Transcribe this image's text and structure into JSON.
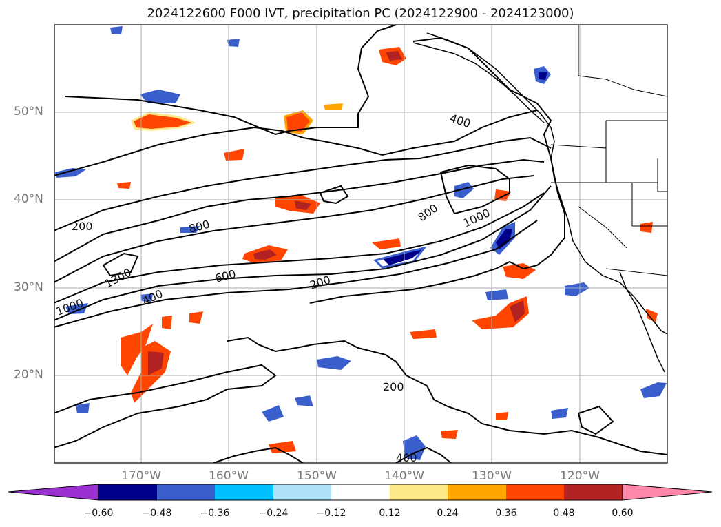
{
  "title": "2024122600 F000 IVT, precipitation PC (2024122900 - 2024123000)",
  "lat_labels": [
    "50°N",
    "40°N",
    "30°N",
    "20°N"
  ],
  "lon_labels": [
    "170°W",
    "160°W",
    "150°W",
    "140°W",
    "130°W",
    "120°W"
  ],
  "ivt_contour_labels": [
    "200",
    "200",
    "200",
    "400",
    "400",
    "400",
    "600",
    "800",
    "800",
    "1000",
    "1000",
    "1300"
  ],
  "colorbar": {
    "ticks": [
      "−0.60",
      "−0.48",
      "−0.36",
      "−0.24",
      "−0.12",
      "0.12",
      "0.24",
      "0.36",
      "0.48",
      "0.60"
    ],
    "colors": [
      "#9b30d0",
      "#00008b",
      "#3a5fcd",
      "#00bfff",
      "#aee2f8",
      "#ffffff",
      "#ffe88a",
      "#ffa500",
      "#ff4500",
      "#b22222",
      "#ff88aa"
    ]
  }
}
